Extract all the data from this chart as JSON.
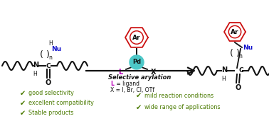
{
  "bg_color": "#ffffff",
  "green": "#4a7a00",
  "red": "#cc1111",
  "blue": "#1111cc",
  "magenta": "#bb00bb",
  "teal": "#4dc8c8",
  "black": "#111111",
  "bullet_left": [
    "good selectivity",
    "excellent compatibility",
    "Stable products"
  ],
  "bullet_right": [
    "mild reaction conditions",
    "wide range of applications"
  ],
  "arrow_text": "Selective arylation",
  "ligand_line": " = ligand",
  "x_line": "X = I, Br, Cl, OTf",
  "fig_w": 3.78,
  "fig_h": 1.88,
  "dpi": 100
}
